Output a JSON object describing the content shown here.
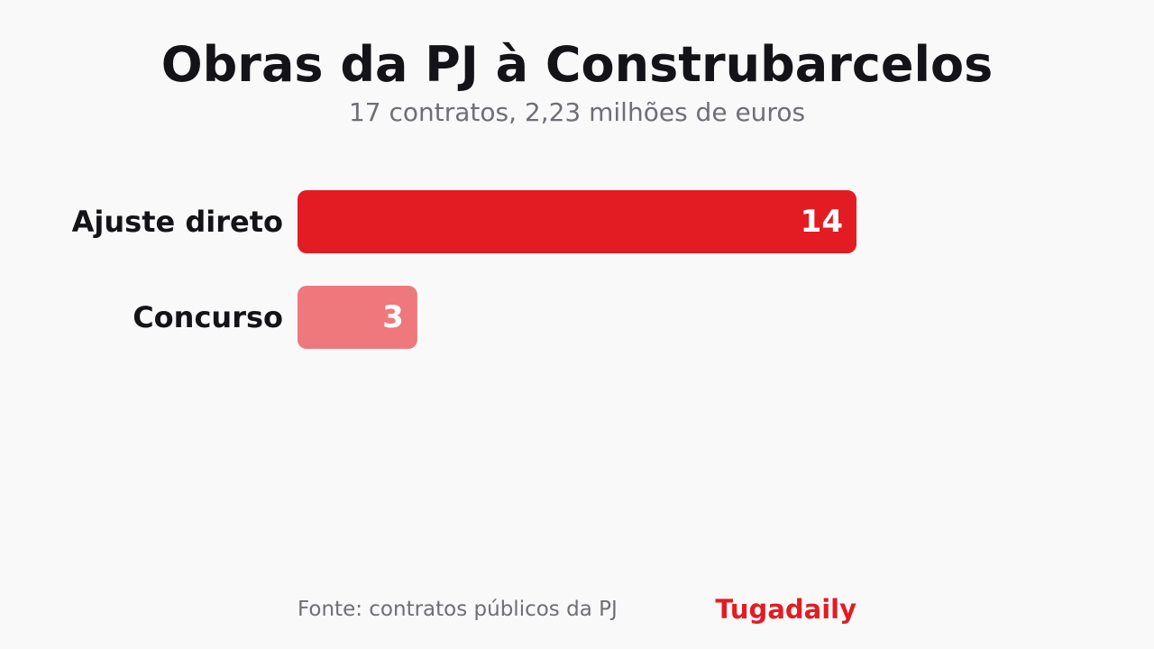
{
  "chart_data": {
    "type": "bar",
    "orientation": "horizontal",
    "title": "Obras da PJ à Construbarcelos",
    "subtitle": "17 contratos, 2,23 milhões de euros",
    "categories": [
      "Ajuste direto",
      "Concurso"
    ],
    "values": [
      14,
      3
    ],
    "colors": [
      "#e31c24",
      "#ef787c"
    ],
    "grid": false
  },
  "footer": {
    "source": "Fonte: contratos públicos da PJ",
    "brand": "Tugadaily"
  },
  "colors": {
    "brand": "#e31c24",
    "title": "#141418",
    "muted": "#6e6e76",
    "background": "#f9f9f9"
  }
}
